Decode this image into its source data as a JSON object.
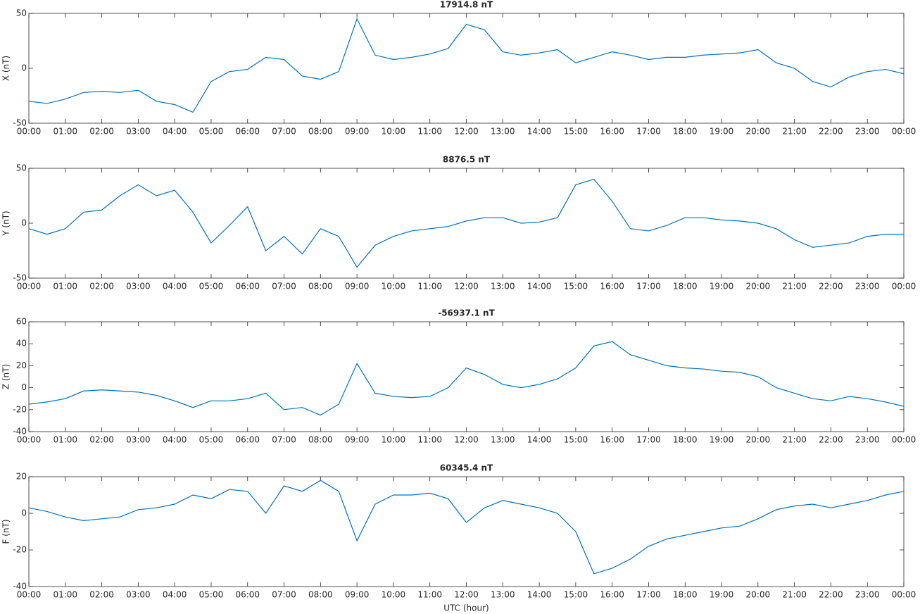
{
  "chart_data": [
    {
      "type": "line",
      "title": "17914.8 nT",
      "ylabel": "X (nT)",
      "color": "#0072bd",
      "x": [
        0,
        0.5,
        1,
        1.5,
        2,
        2.5,
        3,
        3.5,
        4,
        4.5,
        5,
        5.5,
        6,
        6.5,
        7,
        7.5,
        8,
        8.5,
        9,
        9.5,
        10,
        10.5,
        11,
        11.5,
        12,
        12.5,
        13,
        13.5,
        14,
        14.5,
        15,
        15.5,
        16,
        16.5,
        17,
        17.5,
        18,
        18.5,
        19,
        19.5,
        20,
        20.5,
        21,
        21.5,
        22,
        22.5,
        23,
        23.5,
        24
      ],
      "values": [
        -30,
        -32,
        -28,
        -22,
        -21,
        -22,
        -20,
        -30,
        -33,
        -40,
        -12,
        -3,
        -1,
        10,
        8,
        -7,
        -10,
        -3,
        45,
        12,
        8,
        10,
        13,
        18,
        40,
        35,
        15,
        12,
        14,
        17,
        5,
        10,
        15,
        12,
        8,
        10,
        10,
        12,
        13,
        14,
        17,
        5,
        0,
        -12,
        -17,
        -8,
        -3,
        -1,
        -5
      ],
      "xlim": [
        0,
        24
      ],
      "xticks": [
        {
          "value": 0,
          "label": "00:00"
        },
        {
          "value": 1,
          "label": "01:00"
        },
        {
          "value": 2,
          "label": "02:00"
        },
        {
          "value": 3,
          "label": "03:00"
        },
        {
          "value": 4,
          "label": "04:00"
        },
        {
          "value": 5,
          "label": "05:00"
        },
        {
          "value": 6,
          "label": "06:00"
        },
        {
          "value": 7,
          "label": "07:00"
        },
        {
          "value": 8,
          "label": "08:00"
        },
        {
          "value": 9,
          "label": "09:00"
        },
        {
          "value": 10,
          "label": "10:00"
        },
        {
          "value": 11,
          "label": "11:00"
        },
        {
          "value": 12,
          "label": "12:00"
        },
        {
          "value": 13,
          "label": "13:00"
        },
        {
          "value": 14,
          "label": "14:00"
        },
        {
          "value": 15,
          "label": "15:00"
        },
        {
          "value": 16,
          "label": "16:00"
        },
        {
          "value": 17,
          "label": "17:00"
        },
        {
          "value": 18,
          "label": "18:00"
        },
        {
          "value": 19,
          "label": "19:00"
        },
        {
          "value": 20,
          "label": "20:00"
        },
        {
          "value": 21,
          "label": "21:00"
        },
        {
          "value": 22,
          "label": "22:00"
        },
        {
          "value": 23,
          "label": "23:00"
        },
        {
          "value": 24,
          "label": "00:00"
        }
      ],
      "ylim": [
        -50,
        50
      ],
      "yticks": [
        -50,
        0,
        50
      ]
    },
    {
      "type": "line",
      "title": "8876.5 nT",
      "ylabel": "Y (nT)",
      "color": "#0072bd",
      "x": [
        0,
        0.5,
        1,
        1.5,
        2,
        2.5,
        3,
        3.5,
        4,
        4.5,
        5,
        5.5,
        6,
        6.5,
        7,
        7.5,
        8,
        8.5,
        9,
        9.5,
        10,
        10.5,
        11,
        11.5,
        12,
        12.5,
        13,
        13.5,
        14,
        14.5,
        15,
        15.5,
        16,
        16.5,
        17,
        17.5,
        18,
        18.5,
        19,
        19.5,
        20,
        20.5,
        21,
        21.5,
        22,
        22.5,
        23,
        23.5,
        24
      ],
      "values": [
        -5,
        -10,
        -5,
        10,
        12,
        25,
        35,
        25,
        30,
        10,
        -18,
        -2,
        15,
        -25,
        -12,
        -28,
        -5,
        -12,
        -40,
        -20,
        -12,
        -7,
        -5,
        -3,
        2,
        5,
        5,
        0,
        1,
        5,
        35,
        40,
        20,
        -5,
        -7,
        -2,
        5,
        5,
        3,
        2,
        0,
        -5,
        -15,
        -22,
        -20,
        -18,
        -12,
        -10,
        -10
      ],
      "xlim": [
        0,
        24
      ],
      "xticks": [
        {
          "value": 0,
          "label": "00:00"
        },
        {
          "value": 1,
          "label": "01:00"
        },
        {
          "value": 2,
          "label": "02:00"
        },
        {
          "value": 3,
          "label": "03:00"
        },
        {
          "value": 4,
          "label": "04:00"
        },
        {
          "value": 5,
          "label": "05:00"
        },
        {
          "value": 6,
          "label": "06:00"
        },
        {
          "value": 7,
          "label": "07:00"
        },
        {
          "value": 8,
          "label": "08:00"
        },
        {
          "value": 9,
          "label": "09:00"
        },
        {
          "value": 10,
          "label": "10:00"
        },
        {
          "value": 11,
          "label": "11:00"
        },
        {
          "value": 12,
          "label": "12:00"
        },
        {
          "value": 13,
          "label": "13:00"
        },
        {
          "value": 14,
          "label": "14:00"
        },
        {
          "value": 15,
          "label": "15:00"
        },
        {
          "value": 16,
          "label": "16:00"
        },
        {
          "value": 17,
          "label": "17:00"
        },
        {
          "value": 18,
          "label": "18:00"
        },
        {
          "value": 19,
          "label": "19:00"
        },
        {
          "value": 20,
          "label": "20:00"
        },
        {
          "value": 21,
          "label": "21:00"
        },
        {
          "value": 22,
          "label": "22:00"
        },
        {
          "value": 23,
          "label": "23:00"
        },
        {
          "value": 24,
          "label": "00:00"
        }
      ],
      "ylim": [
        -50,
        50
      ],
      "yticks": [
        -50,
        0,
        50
      ]
    },
    {
      "type": "line",
      "title": "-56937.1 nT",
      "ylabel": "Z (nT)",
      "color": "#0072bd",
      "x": [
        0,
        0.5,
        1,
        1.5,
        2,
        2.5,
        3,
        3.5,
        4,
        4.5,
        5,
        5.5,
        6,
        6.5,
        7,
        7.5,
        8,
        8.5,
        9,
        9.5,
        10,
        10.5,
        11,
        11.5,
        12,
        12.5,
        13,
        13.5,
        14,
        14.5,
        15,
        15.5,
        16,
        16.5,
        17,
        17.5,
        18,
        18.5,
        19,
        19.5,
        20,
        20.5,
        21,
        21.5,
        22,
        22.5,
        23,
        23.5,
        24
      ],
      "values": [
        -15,
        -13,
        -10,
        -3,
        -2,
        -3,
        -4,
        -7,
        -12,
        -18,
        -12,
        -12,
        -10,
        -5,
        -20,
        -18,
        -25,
        -15,
        22,
        -5,
        -8,
        -9,
        -8,
        0,
        18,
        12,
        3,
        0,
        3,
        8,
        18,
        38,
        42,
        30,
        25,
        20,
        18,
        17,
        15,
        14,
        10,
        0,
        -5,
        -10,
        -12,
        -8,
        -10,
        -13,
        -17
      ],
      "xlim": [
        0,
        24
      ],
      "xticks": [
        {
          "value": 0,
          "label": "00:00"
        },
        {
          "value": 1,
          "label": "01:00"
        },
        {
          "value": 2,
          "label": "02:00"
        },
        {
          "value": 3,
          "label": "03:00"
        },
        {
          "value": 4,
          "label": "04:00"
        },
        {
          "value": 5,
          "label": "05:00"
        },
        {
          "value": 6,
          "label": "06:00"
        },
        {
          "value": 7,
          "label": "07:00"
        },
        {
          "value": 8,
          "label": "08:00"
        },
        {
          "value": 9,
          "label": "09:00"
        },
        {
          "value": 10,
          "label": "10:00"
        },
        {
          "value": 11,
          "label": "11:00"
        },
        {
          "value": 12,
          "label": "12:00"
        },
        {
          "value": 13,
          "label": "13:00"
        },
        {
          "value": 14,
          "label": "14:00"
        },
        {
          "value": 15,
          "label": "15:00"
        },
        {
          "value": 16,
          "label": "16:00"
        },
        {
          "value": 17,
          "label": "17:00"
        },
        {
          "value": 18,
          "label": "18:00"
        },
        {
          "value": 19,
          "label": "19:00"
        },
        {
          "value": 20,
          "label": "20:00"
        },
        {
          "value": 21,
          "label": "21:00"
        },
        {
          "value": 22,
          "label": "22:00"
        },
        {
          "value": 23,
          "label": "23:00"
        },
        {
          "value": 24,
          "label": "00:00"
        }
      ],
      "ylim": [
        -40,
        60
      ],
      "yticks": [
        -40,
        -20,
        0,
        20,
        40,
        60
      ]
    },
    {
      "type": "line",
      "title": "60345.4 nT",
      "ylabel": "F (nT)",
      "xlabel": "UTC (hour)",
      "color": "#0072bd",
      "x": [
        0,
        0.5,
        1,
        1.5,
        2,
        2.5,
        3,
        3.5,
        4,
        4.5,
        5,
        5.5,
        6,
        6.5,
        7,
        7.5,
        8,
        8.5,
        9,
        9.5,
        10,
        10.5,
        11,
        11.5,
        12,
        12.5,
        13,
        13.5,
        14,
        14.5,
        15,
        15.5,
        16,
        16.5,
        17,
        17.5,
        18,
        18.5,
        19,
        19.5,
        20,
        20.5,
        21,
        21.5,
        22,
        22.5,
        23,
        23.5,
        24
      ],
      "values": [
        3,
        1,
        -2,
        -4,
        -3,
        -2,
        2,
        3,
        5,
        10,
        8,
        13,
        12,
        0,
        15,
        12,
        18,
        12,
        -15,
        5,
        10,
        10,
        11,
        8,
        -5,
        3,
        7,
        5,
        3,
        0,
        -10,
        -33,
        -30,
        -25,
        -18,
        -14,
        -12,
        -10,
        -8,
        -7,
        -3,
        2,
        4,
        5,
        3,
        5,
        7,
        10,
        12
      ],
      "xlim": [
        0,
        24
      ],
      "xticks": [
        {
          "value": 0,
          "label": "00:00"
        },
        {
          "value": 1,
          "label": "01:00"
        },
        {
          "value": 2,
          "label": "02:00"
        },
        {
          "value": 3,
          "label": "03:00"
        },
        {
          "value": 4,
          "label": "04:00"
        },
        {
          "value": 5,
          "label": "05:00"
        },
        {
          "value": 6,
          "label": "06:00"
        },
        {
          "value": 7,
          "label": "07:00"
        },
        {
          "value": 8,
          "label": "08:00"
        },
        {
          "value": 9,
          "label": "09:00"
        },
        {
          "value": 10,
          "label": "10:00"
        },
        {
          "value": 11,
          "label": "11:00"
        },
        {
          "value": 12,
          "label": "12:00"
        },
        {
          "value": 13,
          "label": "13:00"
        },
        {
          "value": 14,
          "label": "14:00"
        },
        {
          "value": 15,
          "label": "15:00"
        },
        {
          "value": 16,
          "label": "16:00"
        },
        {
          "value": 17,
          "label": "17:00"
        },
        {
          "value": 18,
          "label": "18:00"
        },
        {
          "value": 19,
          "label": "19:00"
        },
        {
          "value": 20,
          "label": "20:00"
        },
        {
          "value": 21,
          "label": "21:00"
        },
        {
          "value": 22,
          "label": "22:00"
        },
        {
          "value": 23,
          "label": "23:00"
        },
        {
          "value": 24,
          "label": "00:00"
        }
      ],
      "ylim": [
        -40,
        20
      ],
      "yticks": [
        -40,
        -20,
        0,
        20
      ]
    }
  ]
}
